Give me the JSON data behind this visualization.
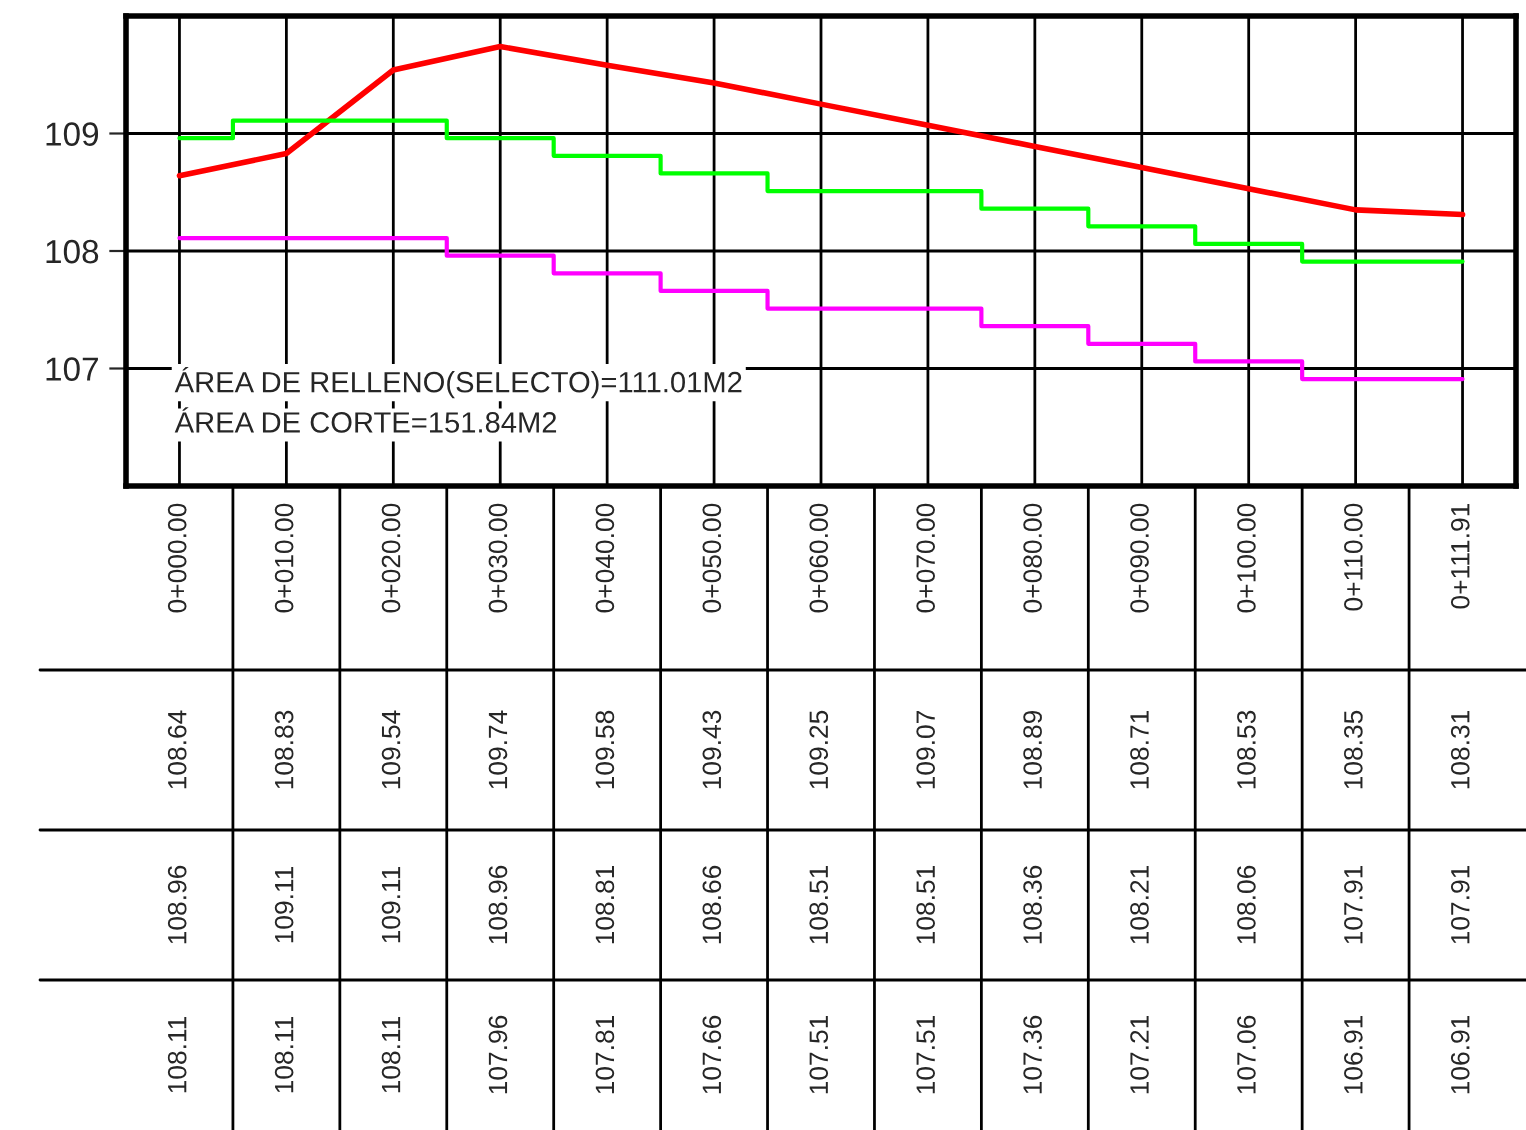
{
  "chart_data": {
    "type": "line",
    "categories": [
      "0+000.00",
      "0+010.00",
      "0+020.00",
      "0+030.00",
      "0+040.00",
      "0+050.00",
      "0+060.00",
      "0+070.00",
      "0+080.00",
      "0+090.00",
      "0+100.00",
      "0+110.00",
      "0+111.91"
    ],
    "series": [
      {
        "color": "#ff0000",
        "values": [
          108.64,
          108.83,
          109.54,
          109.74,
          109.58,
          109.43,
          109.25,
          109.07,
          108.89,
          108.71,
          108.53,
          108.35,
          108.31
        ],
        "value_labels": [
          "108.64",
          "108.83",
          "109.54",
          "109.74",
          "109.58",
          "109.43",
          "109.25",
          "109.07",
          "108.89",
          "108.71",
          "108.53",
          "108.35",
          "108.31"
        ]
      },
      {
        "type": "step",
        "color": "#00ff00",
        "values": [
          108.96,
          109.11,
          109.11,
          108.96,
          108.81,
          108.66,
          108.51,
          108.51,
          108.36,
          108.21,
          108.06,
          107.91,
          107.91
        ],
        "value_labels": [
          "108.96",
          "109.11",
          "109.11",
          "108.96",
          "108.81",
          "108.66",
          "108.51",
          "108.51",
          "108.36",
          "108.21",
          "108.06",
          "107.91",
          "107.91"
        ]
      },
      {
        "type": "step",
        "color": "#ff00ff",
        "values": [
          108.11,
          108.11,
          108.11,
          107.96,
          107.81,
          107.66,
          107.51,
          107.51,
          107.36,
          107.21,
          107.06,
          106.91,
          106.91
        ],
        "value_labels": [
          "108.11",
          "108.11",
          "108.11",
          "107.96",
          "107.81",
          "107.66",
          "107.51",
          "107.51",
          "107.36",
          "107.21",
          "107.06",
          "106.91",
          "106.91"
        ]
      }
    ],
    "ylim": [
      106,
      110
    ],
    "yticks": [
      107,
      108,
      109
    ],
    "grid": true,
    "annotations": [
      "ÁREA DE RELLENO(SELECTO)=111.01M2",
      "ÁREA DE CORTE=151.84M2"
    ]
  }
}
